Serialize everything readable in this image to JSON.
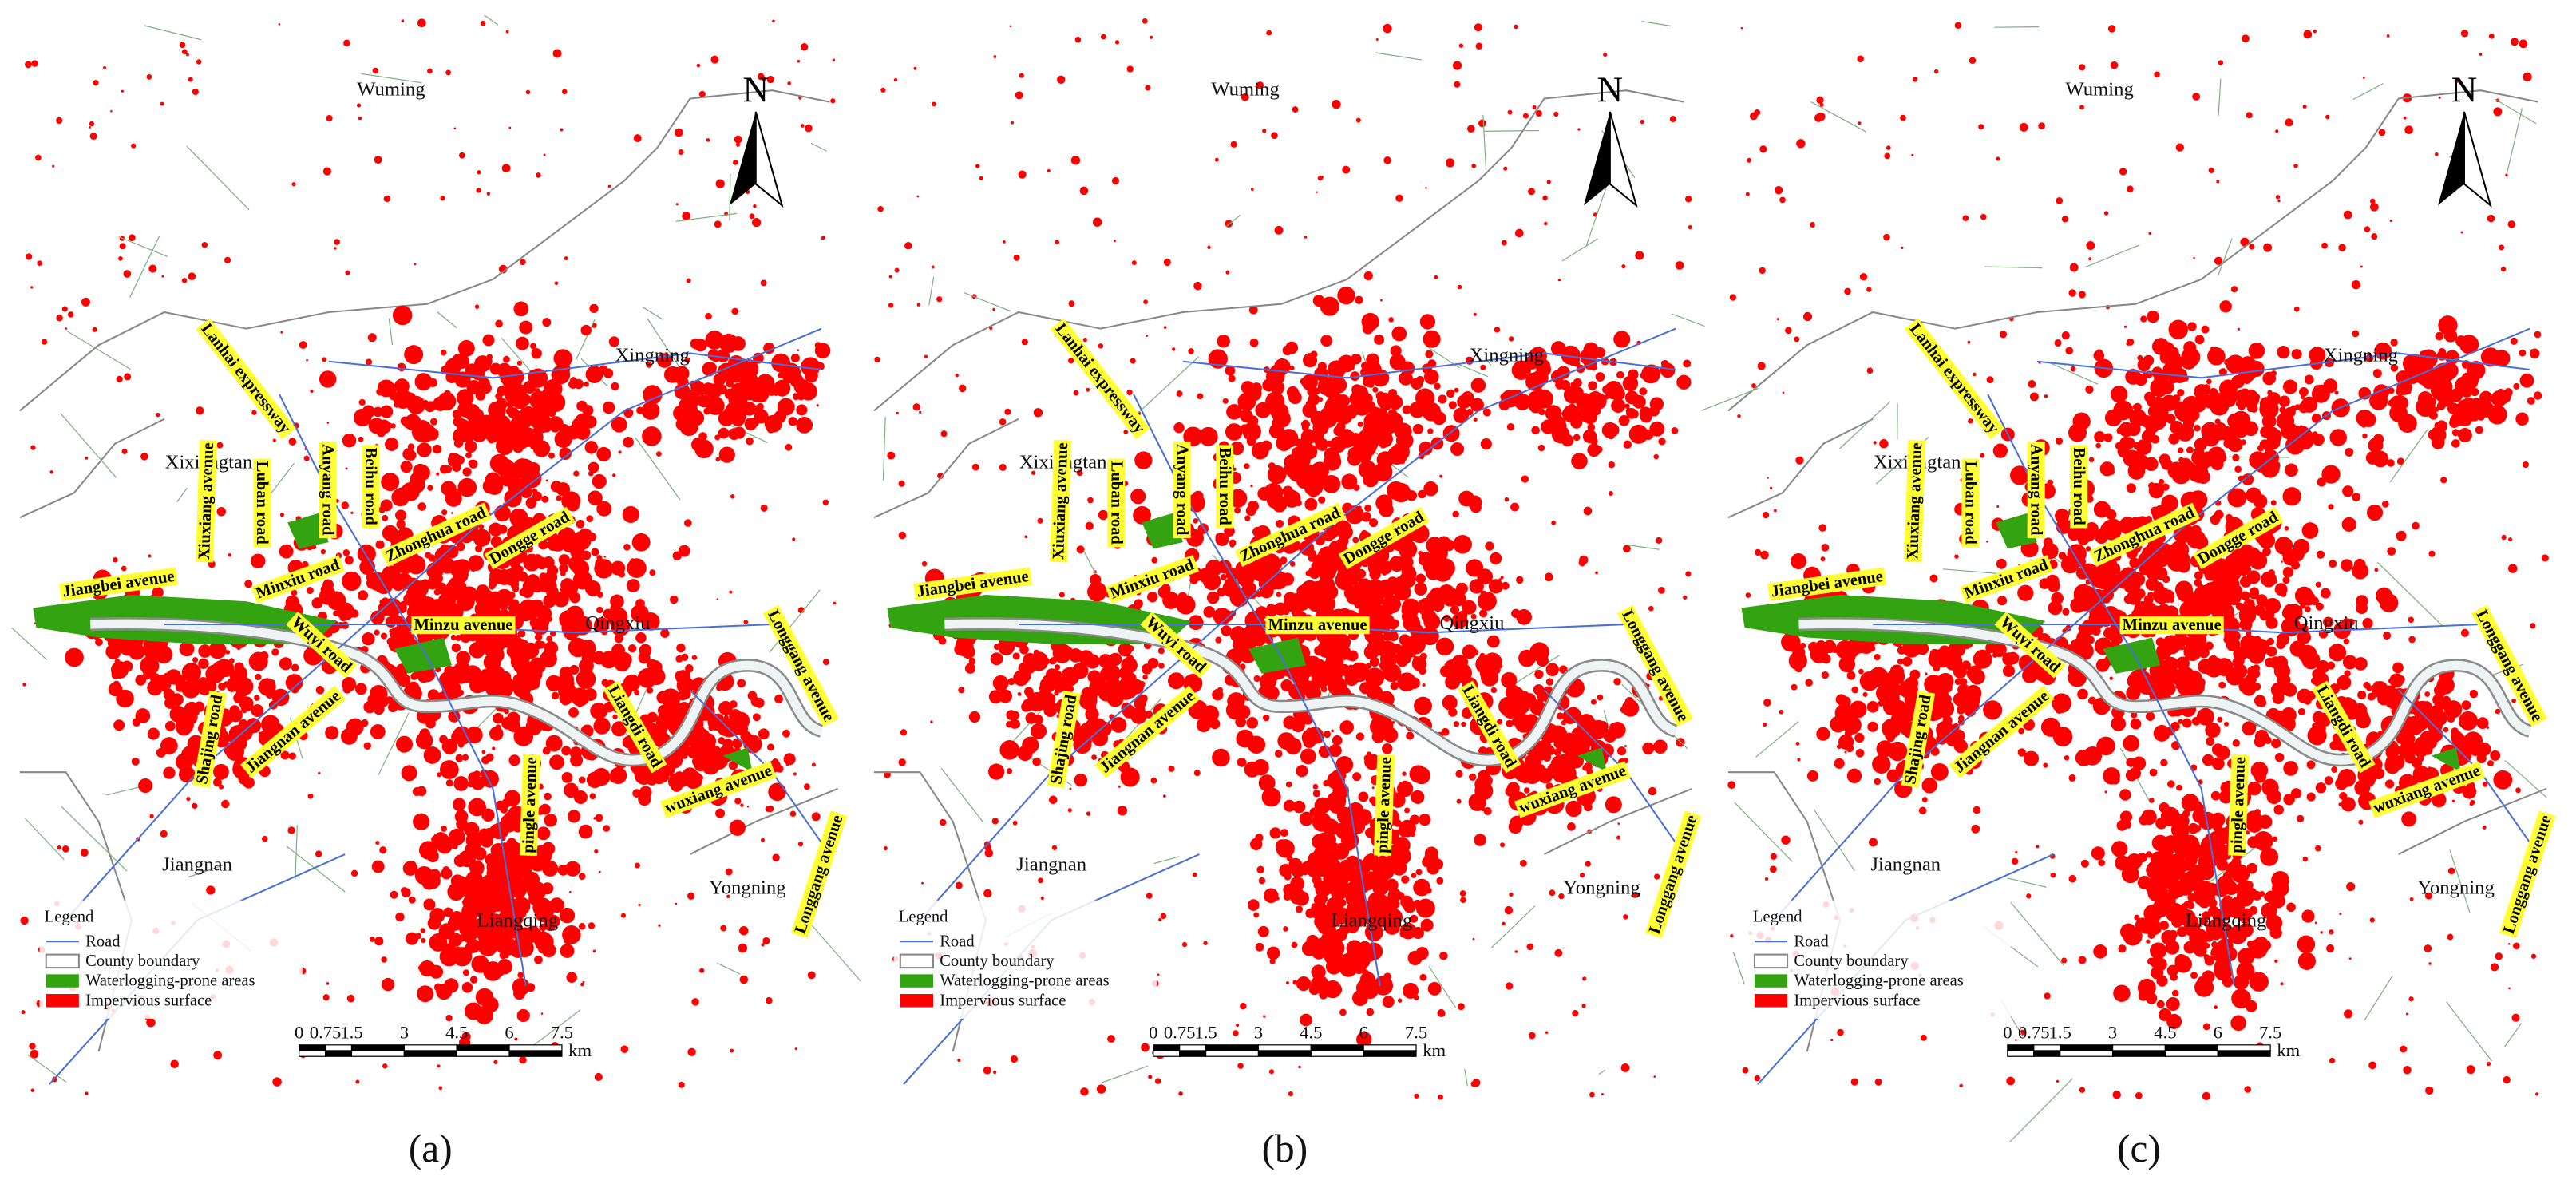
{
  "panels": [
    {
      "label": "(a)",
      "north": "N",
      "places": [
        "Wuming",
        "Xingning",
        "Xixiangtang",
        "Qingxiu",
        "Jiangnan",
        "Liangqing",
        "Yongning"
      ],
      "roads": [
        "Lanhai expressway",
        "Xiuxiang avenue",
        "Luban road",
        "Anyang road",
        "Beihu road",
        "Zhonghua road",
        "Dongge road",
        "Jiangbei avenue",
        "Minxiu road",
        "Minzu avenue",
        "Wuyi road",
        "Shajing road",
        "Jiangnan avenue",
        "Liangdi road",
        "Longgang avenue",
        "wuxiang avenue",
        "pingle avenue",
        "Longgang avenue"
      ],
      "legend": {
        "title": "Legend",
        "items": [
          "Road",
          "County boundary",
          "Waterlogging-prone areas",
          "Impervious surface"
        ]
      },
      "scale_bar": {
        "ticks": [
          0,
          0.75,
          1.5,
          3,
          4.5,
          6,
          7.5
        ],
        "unit": "km"
      }
    },
    {
      "label": "(b)",
      "north": "N",
      "places": [
        "Wuming",
        "Xingning",
        "Xixiangtang",
        "Qingxiu",
        "Jiangnan",
        "Liangqing",
        "Yongning"
      ],
      "roads": [
        "Lanhai expressway",
        "Xiuxiang avenue",
        "Luban road",
        "Anyang road",
        "Beihu road",
        "Zhonghua road",
        "Dongge road",
        "Jiangbei avenue",
        "Minxiu road",
        "Minzu avenue",
        "Wuyi road",
        "Shajing road",
        "Jiangnan avenue",
        "Liangdi road",
        "Longgang avenue",
        "wuxiang avenue",
        "pingle avenue",
        "Longgang avenue"
      ],
      "legend": {
        "title": "Legend",
        "items": [
          "Road",
          "County boundary",
          "Waterlogging-prone areas",
          "Impervious surface"
        ]
      },
      "scale_bar": {
        "ticks": [
          0,
          0.75,
          1.5,
          3,
          4.5,
          6,
          7.5
        ],
        "unit": "km"
      }
    },
    {
      "label": "(c)",
      "north": "N",
      "places": [
        "Wuming",
        "Xingning",
        "Xixiangtang",
        "Qingxiu",
        "Jiangnan",
        "Liangqing",
        "Yongning"
      ],
      "roads": [
        "Lanhai expressway",
        "Xiuxiang avenue",
        "Luban road",
        "Anyang road",
        "Beihu road",
        "Zhonghua road",
        "Dongge road",
        "Jiangbei avenue",
        "Minxiu road",
        "Minzu avenue",
        "Wuyi road",
        "Shajing road",
        "Jiangnan avenue",
        "Liangdi road",
        "Longgang avenue",
        "wuxiang avenue",
        "pingle avenue",
        "Longgang avenue"
      ],
      "legend": {
        "title": "Legend",
        "items": [
          "Road",
          "County boundary",
          "Waterlogging-prone areas",
          "Impervious surface"
        ]
      },
      "scale_bar": {
        "ticks": [
          0,
          0.75,
          1.5,
          3,
          4.5,
          6,
          7.5
        ],
        "unit": "km"
      }
    }
  ]
}
